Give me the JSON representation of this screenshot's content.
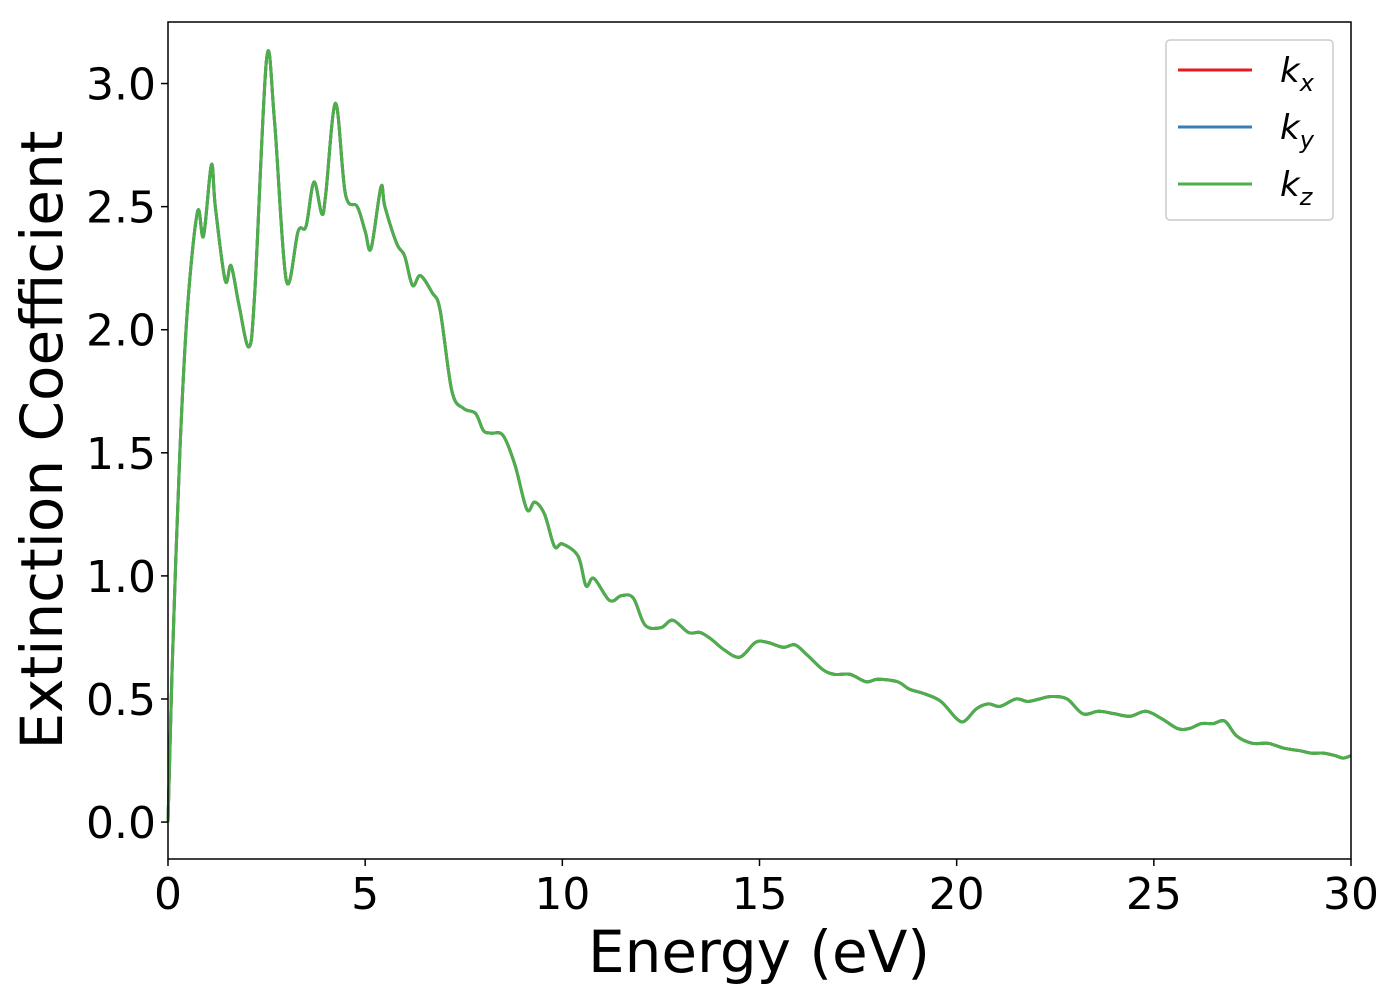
{
  "chart_data": {
    "type": "line",
    "title": "",
    "xlabel": "Energy (eV)",
    "ylabel": "Extinction Coefficient",
    "xlim": [
      0,
      30
    ],
    "ylim": [
      -0.15,
      3.25
    ],
    "x_ticks": [
      0,
      5,
      10,
      15,
      20,
      25,
      30
    ],
    "x_tick_labels": [
      "0",
      "5",
      "10",
      "15",
      "20",
      "25",
      "30"
    ],
    "y_ticks": [
      0.0,
      0.5,
      1.0,
      1.5,
      2.0,
      2.5,
      3.0
    ],
    "y_tick_labels": [
      "0.0",
      "0.5",
      "1.0",
      "1.5",
      "2.0",
      "2.5",
      "3.0"
    ],
    "grid": false,
    "legend_position": "top-right",
    "series": [
      {
        "name": "k_x",
        "legend_base": "k",
        "legend_sub": "x",
        "color": "#e41a1c",
        "x": [
          0,
          0.1,
          0.3,
          0.5,
          0.75,
          0.9,
          1.1,
          1.2,
          1.45,
          1.6,
          1.8,
          2.05,
          2.2,
          2.5,
          2.7,
          3.0,
          3.3,
          3.5,
          3.7,
          3.9,
          4.0,
          4.25,
          4.5,
          4.8,
          5.0,
          5.15,
          5.4,
          5.5,
          5.8,
          6.0,
          6.2,
          6.4,
          6.7,
          6.9,
          7.2,
          7.5,
          7.8,
          8.0,
          8.2,
          8.5,
          8.8,
          9.1,
          9.3,
          9.55,
          9.8,
          10.0,
          10.4,
          10.6,
          10.8,
          11.2,
          11.5,
          11.8,
          12.1,
          12.5,
          12.8,
          13.2,
          13.5,
          13.8,
          14.1,
          14.5,
          14.9,
          15.2,
          15.6,
          15.9,
          16.2,
          16.6,
          16.9,
          17.3,
          17.7,
          18.0,
          18.5,
          18.8,
          19.2,
          19.6,
          20.0,
          20.2,
          20.5,
          20.8,
          21.1,
          21.5,
          21.8,
          22.1,
          22.4,
          22.8,
          23.2,
          23.6,
          24.0,
          24.4,
          24.8,
          25.2,
          25.6,
          25.9,
          26.2,
          26.5,
          26.8,
          27.1,
          27.5,
          27.9,
          28.3,
          28.7,
          29.0,
          29.3,
          29.6,
          29.8,
          30.0
        ],
        "y": [
          0.0,
          0.6,
          1.5,
          2.1,
          2.48,
          2.38,
          2.67,
          2.5,
          2.2,
          2.26,
          2.1,
          1.93,
          2.15,
          3.1,
          2.85,
          2.2,
          2.4,
          2.42,
          2.6,
          2.47,
          2.55,
          2.92,
          2.55,
          2.5,
          2.4,
          2.33,
          2.58,
          2.5,
          2.35,
          2.3,
          2.18,
          2.22,
          2.15,
          2.08,
          1.75,
          1.68,
          1.66,
          1.59,
          1.58,
          1.57,
          1.45,
          1.27,
          1.3,
          1.25,
          1.12,
          1.13,
          1.08,
          0.96,
          0.99,
          0.9,
          0.92,
          0.91,
          0.8,
          0.79,
          0.82,
          0.77,
          0.77,
          0.74,
          0.7,
          0.67,
          0.73,
          0.73,
          0.71,
          0.72,
          0.68,
          0.62,
          0.6,
          0.6,
          0.57,
          0.58,
          0.57,
          0.54,
          0.52,
          0.49,
          0.42,
          0.41,
          0.46,
          0.48,
          0.47,
          0.5,
          0.49,
          0.5,
          0.51,
          0.5,
          0.44,
          0.45,
          0.44,
          0.43,
          0.45,
          0.42,
          0.38,
          0.38,
          0.4,
          0.4,
          0.41,
          0.35,
          0.32,
          0.32,
          0.3,
          0.29,
          0.28,
          0.28,
          0.27,
          0.26,
          0.27
        ]
      },
      {
        "name": "k_y",
        "legend_base": "k",
        "legend_sub": "y",
        "color": "#377eb8",
        "x": [
          0,
          0.1,
          0.3,
          0.5,
          0.75,
          0.9,
          1.1,
          1.2,
          1.45,
          1.6,
          1.8,
          2.05,
          2.2,
          2.5,
          2.7,
          3.0,
          3.3,
          3.5,
          3.7,
          3.9,
          4.0,
          4.25,
          4.5,
          4.8,
          5.0,
          5.15,
          5.4,
          5.5,
          5.8,
          6.0,
          6.2,
          6.4,
          6.7,
          6.9,
          7.2,
          7.5,
          7.8,
          8.0,
          8.2,
          8.5,
          8.8,
          9.1,
          9.3,
          9.55,
          9.8,
          10.0,
          10.4,
          10.6,
          10.8,
          11.2,
          11.5,
          11.8,
          12.1,
          12.5,
          12.8,
          13.2,
          13.5,
          13.8,
          14.1,
          14.5,
          14.9,
          15.2,
          15.6,
          15.9,
          16.2,
          16.6,
          16.9,
          17.3,
          17.7,
          18.0,
          18.5,
          18.8,
          19.2,
          19.6,
          20.0,
          20.2,
          20.5,
          20.8,
          21.1,
          21.5,
          21.8,
          22.1,
          22.4,
          22.8,
          23.2,
          23.6,
          24.0,
          24.4,
          24.8,
          25.2,
          25.6,
          25.9,
          26.2,
          26.5,
          26.8,
          27.1,
          27.5,
          27.9,
          28.3,
          28.7,
          29.0,
          29.3,
          29.6,
          29.8,
          30.0
        ],
        "y": [
          0.0,
          0.6,
          1.5,
          2.1,
          2.48,
          2.38,
          2.67,
          2.5,
          2.2,
          2.26,
          2.1,
          1.93,
          2.15,
          3.1,
          2.85,
          2.2,
          2.4,
          2.42,
          2.6,
          2.47,
          2.55,
          2.92,
          2.55,
          2.5,
          2.4,
          2.33,
          2.58,
          2.5,
          2.35,
          2.3,
          2.18,
          2.22,
          2.15,
          2.08,
          1.75,
          1.68,
          1.66,
          1.59,
          1.58,
          1.57,
          1.45,
          1.27,
          1.3,
          1.25,
          1.12,
          1.13,
          1.08,
          0.96,
          0.99,
          0.9,
          0.92,
          0.91,
          0.8,
          0.79,
          0.82,
          0.77,
          0.77,
          0.74,
          0.7,
          0.67,
          0.73,
          0.73,
          0.71,
          0.72,
          0.68,
          0.62,
          0.6,
          0.6,
          0.57,
          0.58,
          0.57,
          0.54,
          0.52,
          0.49,
          0.42,
          0.41,
          0.46,
          0.48,
          0.47,
          0.5,
          0.49,
          0.5,
          0.51,
          0.5,
          0.44,
          0.45,
          0.44,
          0.43,
          0.45,
          0.42,
          0.38,
          0.38,
          0.4,
          0.4,
          0.41,
          0.35,
          0.32,
          0.32,
          0.3,
          0.29,
          0.28,
          0.28,
          0.27,
          0.26,
          0.27
        ]
      },
      {
        "name": "k_z",
        "legend_base": "k",
        "legend_sub": "z",
        "color": "#4daf4a",
        "x": [
          0,
          0.1,
          0.3,
          0.5,
          0.75,
          0.9,
          1.1,
          1.2,
          1.45,
          1.6,
          1.8,
          2.05,
          2.2,
          2.5,
          2.7,
          3.0,
          3.3,
          3.5,
          3.7,
          3.9,
          4.0,
          4.25,
          4.5,
          4.8,
          5.0,
          5.15,
          5.4,
          5.5,
          5.8,
          6.0,
          6.2,
          6.4,
          6.7,
          6.9,
          7.2,
          7.5,
          7.8,
          8.0,
          8.2,
          8.5,
          8.8,
          9.1,
          9.3,
          9.55,
          9.8,
          10.0,
          10.4,
          10.6,
          10.8,
          11.2,
          11.5,
          11.8,
          12.1,
          12.5,
          12.8,
          13.2,
          13.5,
          13.8,
          14.1,
          14.5,
          14.9,
          15.2,
          15.6,
          15.9,
          16.2,
          16.6,
          16.9,
          17.3,
          17.7,
          18.0,
          18.5,
          18.8,
          19.2,
          19.6,
          20.0,
          20.2,
          20.5,
          20.8,
          21.1,
          21.5,
          21.8,
          22.1,
          22.4,
          22.8,
          23.2,
          23.6,
          24.0,
          24.4,
          24.8,
          25.2,
          25.6,
          25.9,
          26.2,
          26.5,
          26.8,
          27.1,
          27.5,
          27.9,
          28.3,
          28.7,
          29.0,
          29.3,
          29.6,
          29.8,
          30.0
        ],
        "y": [
          0.0,
          0.6,
          1.5,
          2.1,
          2.48,
          2.38,
          2.67,
          2.5,
          2.2,
          2.26,
          2.1,
          1.93,
          2.15,
          3.1,
          2.85,
          2.2,
          2.4,
          2.42,
          2.6,
          2.47,
          2.55,
          2.92,
          2.55,
          2.5,
          2.4,
          2.33,
          2.58,
          2.5,
          2.35,
          2.3,
          2.18,
          2.22,
          2.15,
          2.08,
          1.75,
          1.68,
          1.66,
          1.59,
          1.58,
          1.57,
          1.45,
          1.27,
          1.3,
          1.25,
          1.12,
          1.13,
          1.08,
          0.96,
          0.99,
          0.9,
          0.92,
          0.91,
          0.8,
          0.79,
          0.82,
          0.77,
          0.77,
          0.74,
          0.7,
          0.67,
          0.73,
          0.73,
          0.71,
          0.72,
          0.68,
          0.62,
          0.6,
          0.6,
          0.57,
          0.58,
          0.57,
          0.54,
          0.52,
          0.49,
          0.42,
          0.41,
          0.46,
          0.48,
          0.47,
          0.5,
          0.49,
          0.5,
          0.51,
          0.5,
          0.44,
          0.45,
          0.44,
          0.43,
          0.45,
          0.42,
          0.38,
          0.38,
          0.4,
          0.4,
          0.41,
          0.35,
          0.32,
          0.32,
          0.3,
          0.29,
          0.28,
          0.28,
          0.27,
          0.26,
          0.27
        ]
      }
    ]
  }
}
